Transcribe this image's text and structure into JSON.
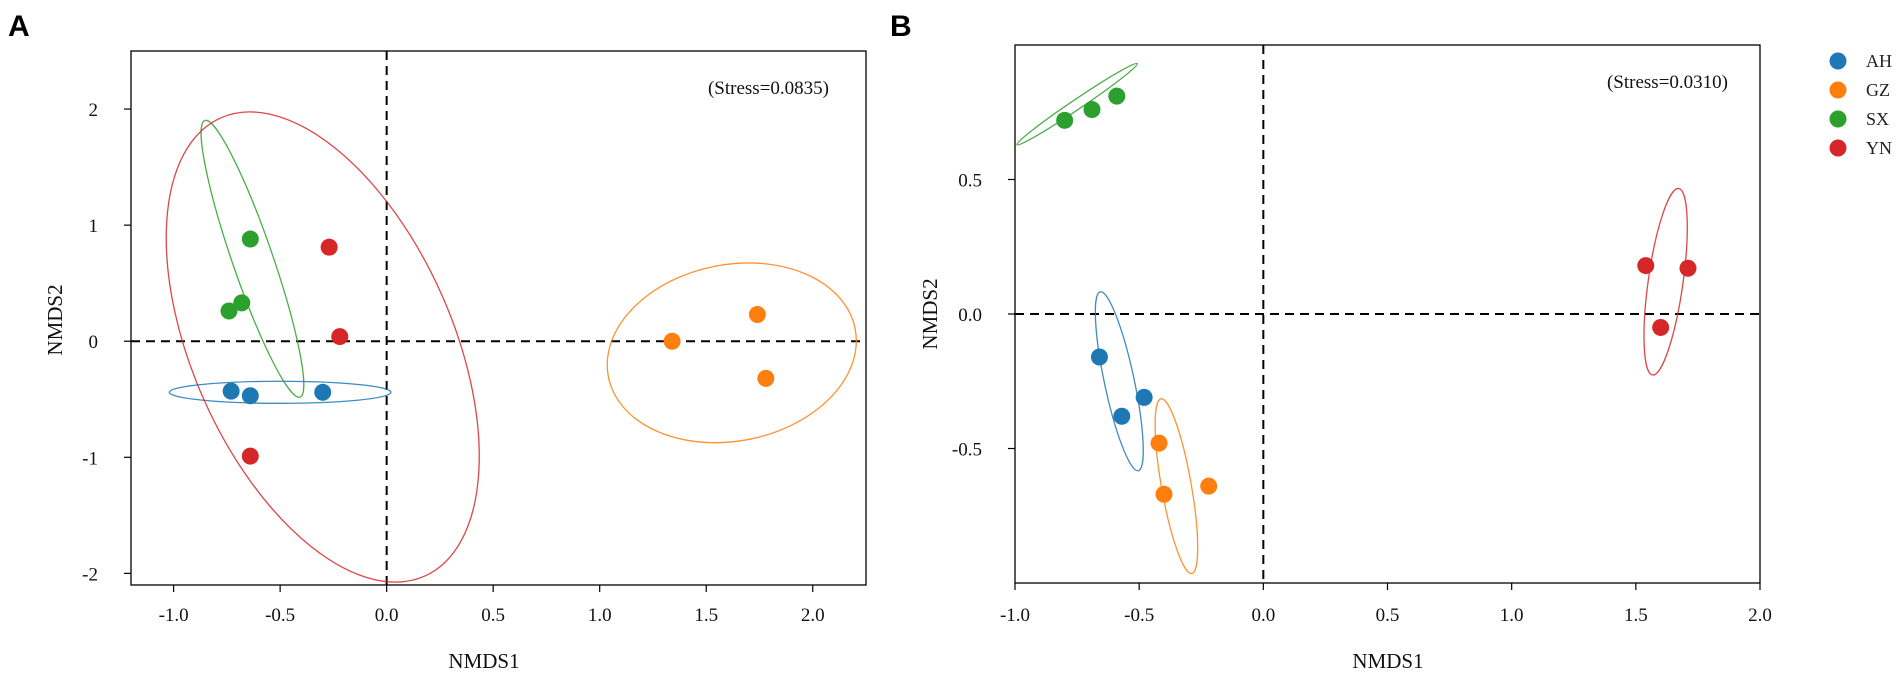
{
  "chart_data": [
    {
      "type": "scatter",
      "panel": "A",
      "xlabel": "NMDS1",
      "ylabel": "NMDS2",
      "stress_label": "(Stress=0.0835)",
      "xlim": [
        -1.2,
        2.25
      ],
      "ylim": [
        -2.1,
        2.5
      ],
      "xticks": [
        -1.0,
        -0.5,
        0.0,
        0.5,
        1.0,
        1.5,
        2.0
      ],
      "xtick_labels": [
        "-1.0",
        "-0.5",
        "0.0",
        "0.5",
        "1.0",
        "1.5",
        "2.0"
      ],
      "yticks": [
        -2,
        -1,
        0,
        1,
        2
      ],
      "ytick_labels": [
        "-2",
        "-1",
        "0",
        "1",
        "2"
      ],
      "reference_lines": {
        "x": 0,
        "y": 0
      },
      "series": [
        {
          "name": "AH",
          "color": "#1f77b4",
          "points": [
            [
              -0.73,
              -0.43
            ],
            [
              -0.64,
              -0.47
            ],
            [
              -0.3,
              -0.44
            ]
          ],
          "ellipse": {
            "cx": -0.5,
            "cy": -0.44,
            "rx": 0.52,
            "ry": 0.095,
            "angle": 0
          }
        },
        {
          "name": "GZ",
          "color": "#ff7f0e",
          "points": [
            [
              1.34,
              0.0
            ],
            [
              1.74,
              0.23
            ],
            [
              1.78,
              -0.32
            ]
          ],
          "ellipse": {
            "cx": 1.62,
            "cy": -0.1,
            "rx": 0.59,
            "ry": 0.76,
            "angle": -11
          }
        },
        {
          "name": "SX",
          "color": "#2ca02c",
          "points": [
            [
              -0.64,
              0.88
            ],
            [
              -0.68,
              0.33
            ],
            [
              -0.74,
              0.26
            ]
          ],
          "ellipse": {
            "cx": -0.63,
            "cy": 0.71,
            "rx": 0.095,
            "ry": 1.26,
            "angle": -19
          }
        },
        {
          "name": "YN",
          "color": "#d62728",
          "points": [
            [
              -0.27,
              0.81
            ],
            [
              -0.22,
              0.04
            ],
            [
              -0.64,
              -0.99
            ]
          ],
          "ellipse": {
            "cx": -0.3,
            "cy": -0.05,
            "rx": 0.61,
            "ry": 2.16,
            "angle": -24
          }
        }
      ]
    },
    {
      "type": "scatter",
      "panel": "B",
      "xlabel": "NMDS1",
      "ylabel": "NMDS2",
      "stress_label": "(Stress=0.0310)",
      "xlim": [
        -1.0,
        2.0
      ],
      "ylim": [
        -1.0,
        1.0
      ],
      "xticks": [
        -1.0,
        -0.5,
        0.0,
        0.5,
        1.0,
        1.5,
        2.0
      ],
      "xtick_labels": [
        "-1.0",
        "-0.5",
        "0.0",
        "0.5",
        "1.0",
        "1.5",
        "2.0"
      ],
      "yticks": [
        -0.5,
        0.0,
        0.5
      ],
      "ytick_labels": [
        "-0.5",
        "0.0",
        "0.5"
      ],
      "reference_lines": {
        "x": 0,
        "y": 0
      },
      "series": [
        {
          "name": "AH",
          "color": "#1f77b4",
          "points": [
            [
              -0.66,
              -0.16
            ],
            [
              -0.48,
              -0.31
            ],
            [
              -0.57,
              -0.38
            ]
          ],
          "ellipse": {
            "cx": -0.58,
            "cy": -0.25,
            "rx": 0.06,
            "ry": 0.34,
            "angle": -12
          }
        },
        {
          "name": "GZ",
          "color": "#ff7f0e",
          "points": [
            [
              -0.42,
              -0.48
            ],
            [
              -0.4,
              -0.67
            ],
            [
              -0.22,
              -0.64
            ]
          ],
          "ellipse": {
            "cx": -0.35,
            "cy": -0.64,
            "rx": 0.06,
            "ry": 0.33,
            "angle": -10
          }
        },
        {
          "name": "SX",
          "color": "#2ca02c",
          "points": [
            [
              -0.8,
              0.72
            ],
            [
              -0.69,
              0.76
            ],
            [
              -0.59,
              0.81
            ]
          ],
          "ellipse": {
            "cx": -0.75,
            "cy": 0.78,
            "rx": 0.02,
            "ry": 0.27,
            "angle": 56
          }
        },
        {
          "name": "YN",
          "color": "#d62728",
          "points": [
            [
              1.54,
              0.18
            ],
            [
              1.71,
              0.17
            ],
            [
              1.6,
              -0.05
            ]
          ],
          "ellipse": {
            "cx": 1.62,
            "cy": 0.12,
            "rx": 0.07,
            "ry": 0.35,
            "angle": 8
          }
        }
      ]
    }
  ],
  "legend": {
    "items": [
      {
        "label": "AH",
        "color": "#1f77b4"
      },
      {
        "label": "GZ",
        "color": "#ff7f0e"
      },
      {
        "label": "SX",
        "color": "#2ca02c"
      },
      {
        "label": "YN",
        "color": "#d62728"
      }
    ]
  }
}
